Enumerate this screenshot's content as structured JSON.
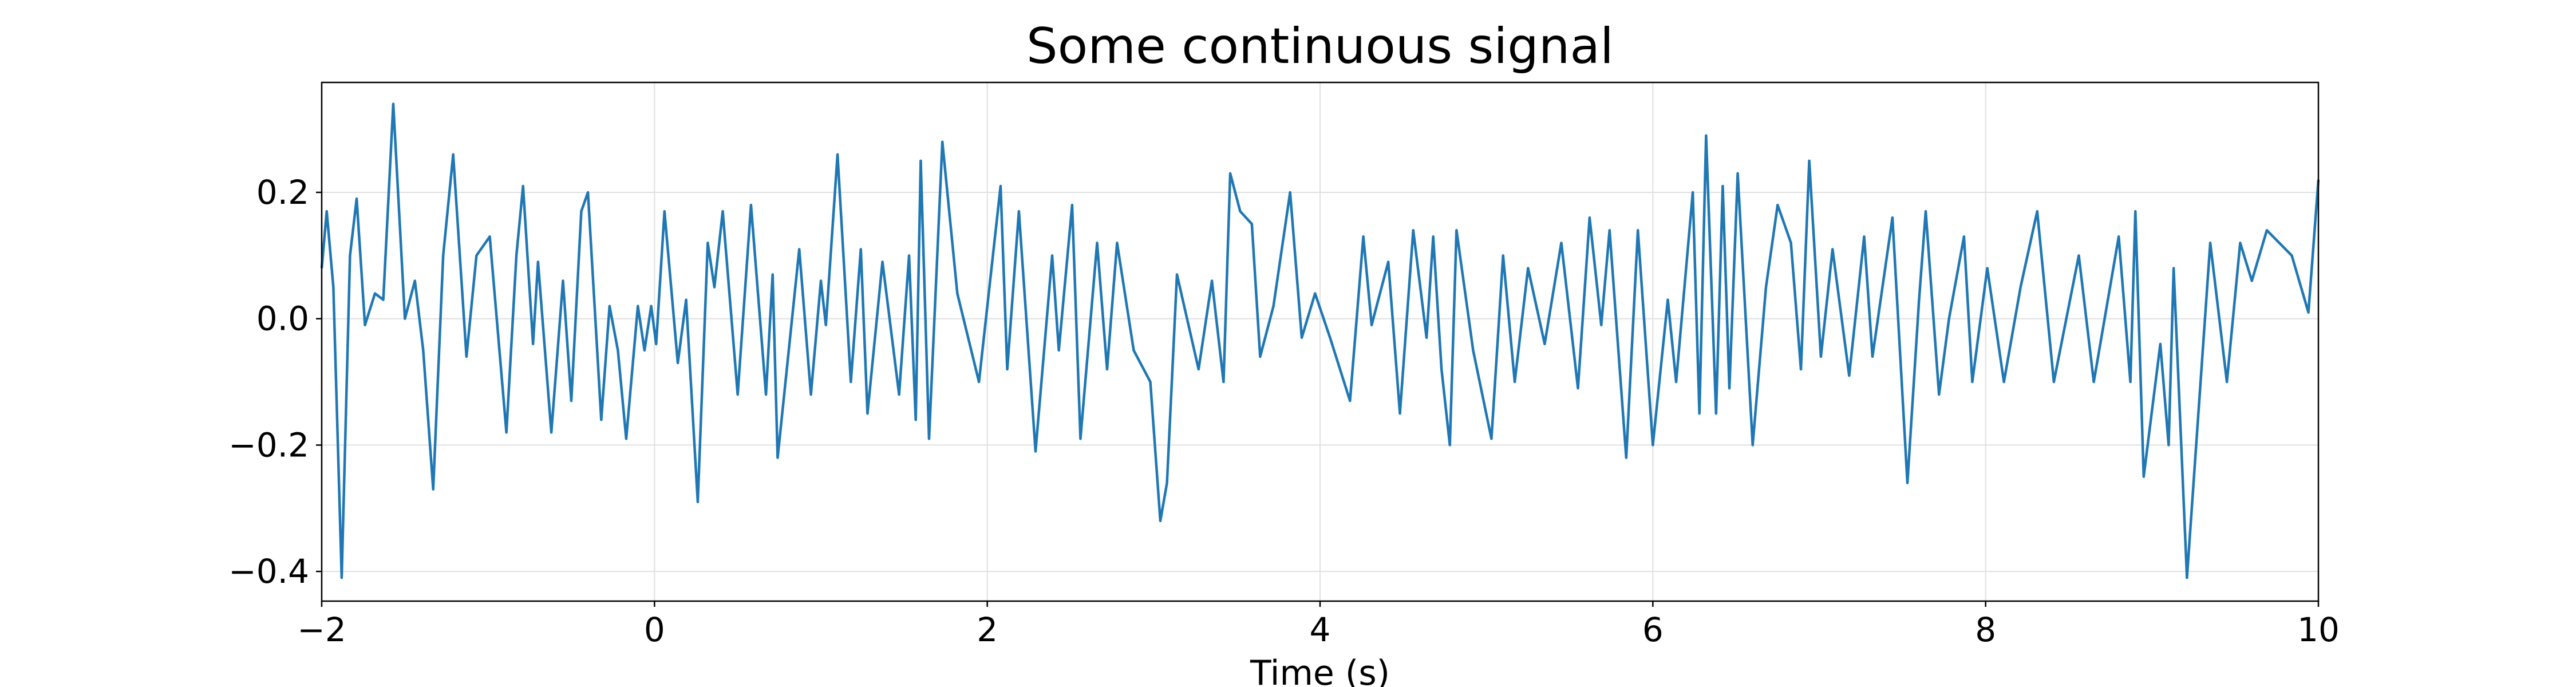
{
  "chart_data": {
    "type": "line",
    "title": "Some continuous signal",
    "xlabel": "Time (s)",
    "x": [
      -2.0,
      -1.97,
      -1.93,
      -1.88,
      -1.83,
      -1.79,
      -1.74,
      -1.68,
      -1.63,
      -1.57,
      -1.5,
      -1.44,
      -1.39,
      -1.33,
      -1.27,
      -1.21,
      -1.13,
      -1.07,
      -0.99,
      -0.89,
      -0.83,
      -0.79,
      -0.73,
      -0.7,
      -0.62,
      -0.55,
      -0.5,
      -0.44,
      -0.4,
      -0.32,
      -0.27,
      -0.22,
      -0.17,
      -0.1,
      -0.06,
      -0.02,
      0.01,
      0.06,
      0.14,
      0.19,
      0.26,
      0.32,
      0.36,
      0.41,
      0.5,
      0.58,
      0.67,
      0.71,
      0.74,
      0.87,
      0.94,
      1.0,
      1.03,
      1.1,
      1.18,
      1.24,
      1.28,
      1.37,
      1.47,
      1.53,
      1.57,
      1.6,
      1.65,
      1.73,
      1.82,
      1.95,
      2.08,
      2.12,
      2.19,
      2.29,
      2.39,
      2.43,
      2.51,
      2.56,
      2.66,
      2.72,
      2.78,
      2.88,
      2.98,
      3.04,
      3.08,
      3.14,
      3.27,
      3.35,
      3.42,
      3.46,
      3.52,
      3.59,
      3.64,
      3.72,
      3.82,
      3.89,
      3.97,
      4.06,
      4.18,
      4.26,
      4.31,
      4.41,
      4.48,
      4.56,
      4.64,
      4.68,
      4.73,
      4.78,
      4.82,
      4.92,
      5.03,
      5.1,
      5.17,
      5.25,
      5.35,
      5.45,
      5.55,
      5.62,
      5.69,
      5.74,
      5.84,
      5.91,
      6.0,
      6.09,
      6.14,
      6.24,
      6.28,
      6.32,
      6.38,
      6.42,
      6.46,
      6.51,
      6.6,
      6.68,
      6.75,
      6.83,
      6.89,
      6.94,
      7.01,
      7.08,
      7.18,
      7.27,
      7.32,
      7.44,
      7.53,
      7.6,
      7.64,
      7.72,
      7.78,
      7.87,
      7.92,
      8.01,
      8.11,
      8.21,
      8.31,
      8.41,
      8.56,
      8.65,
      8.8,
      8.87,
      8.9,
      8.95,
      9.05,
      9.1,
      9.13,
      9.21,
      9.35,
      9.45,
      9.53,
      9.6,
      9.69,
      9.84,
      9.94,
      10.0
    ],
    "series": [
      {
        "color": "#1f77b4",
        "values": [
          0.08,
          0.17,
          0.05,
          -0.41,
          0.1,
          0.19,
          -0.01,
          0.04,
          0.03,
          0.34,
          0.0,
          0.06,
          -0.05,
          -0.27,
          0.1,
          0.26,
          -0.06,
          0.1,
          0.13,
          -0.18,
          0.1,
          0.21,
          -0.04,
          0.09,
          -0.18,
          0.06,
          -0.13,
          0.17,
          0.2,
          -0.16,
          0.02,
          -0.05,
          -0.19,
          0.02,
          -0.05,
          0.02,
          -0.04,
          0.17,
          -0.07,
          0.03,
          -0.29,
          0.12,
          0.05,
          0.17,
          -0.12,
          0.18,
          -0.12,
          0.07,
          -0.22,
          0.11,
          -0.12,
          0.06,
          -0.01,
          0.26,
          -0.1,
          0.11,
          -0.15,
          0.09,
          -0.12,
          0.1,
          -0.16,
          0.25,
          -0.19,
          0.28,
          0.04,
          -0.1,
          0.21,
          -0.08,
          0.17,
          -0.21,
          0.1,
          -0.05,
          0.18,
          -0.19,
          0.12,
          -0.08,
          0.12,
          -0.05,
          -0.1,
          -0.32,
          -0.26,
          0.07,
          -0.08,
          0.06,
          -0.1,
          0.23,
          0.17,
          0.15,
          -0.06,
          0.02,
          0.2,
          -0.03,
          0.04,
          -0.03,
          -0.13,
          0.13,
          -0.01,
          0.09,
          -0.15,
          0.14,
          -0.03,
          0.13,
          -0.08,
          -0.2,
          0.14,
          -0.05,
          -0.19,
          0.1,
          -0.1,
          0.08,
          -0.04,
          0.12,
          -0.11,
          0.16,
          -0.01,
          0.14,
          -0.22,
          0.14,
          -0.2,
          0.03,
          -0.1,
          0.2,
          -0.15,
          0.29,
          -0.15,
          0.21,
          -0.11,
          0.23,
          -0.2,
          0.05,
          0.18,
          0.12,
          -0.08,
          0.25,
          -0.06,
          0.11,
          -0.09,
          0.13,
          -0.06,
          0.16,
          -0.26,
          0.03,
          0.17,
          -0.12,
          0.0,
          0.13,
          -0.1,
          0.08,
          -0.1,
          0.05,
          0.17,
          -0.1,
          0.1,
          -0.1,
          0.13,
          -0.1,
          0.17,
          -0.25,
          -0.04,
          -0.2,
          0.08,
          -0.41,
          0.12,
          -0.1,
          0.12,
          0.06,
          0.14,
          0.1,
          0.01,
          0.22
        ]
      }
    ],
    "xlim": [
      -2,
      10
    ],
    "ylim": [
      -0.447,
      0.374
    ],
    "xticks": [
      {
        "value": -2,
        "label": "−2"
      },
      0,
      2,
      4,
      6,
      8,
      10
    ],
    "yticks": [
      {
        "value": -0.4,
        "label": "−0.4"
      },
      {
        "value": -0.2,
        "label": "−0.2"
      },
      {
        "value": 0,
        "label": "0.0"
      },
      0.2
    ],
    "grid": true
  }
}
